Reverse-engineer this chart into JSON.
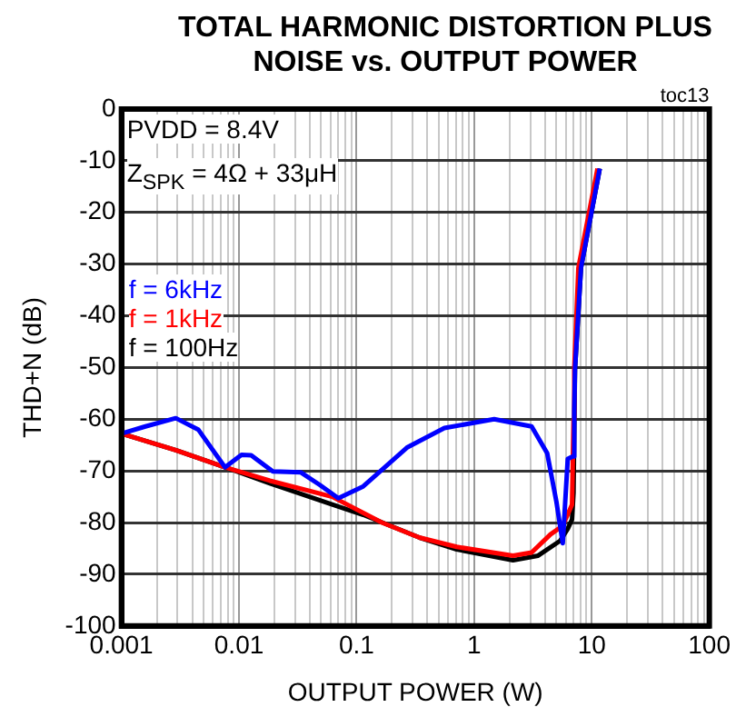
{
  "chart_data": {
    "type": "line",
    "title": "TOTAL HARMONIC DISTORTION PLUS NOISE vs. OUTPUT POWER",
    "xlabel": "OUTPUT POWER (W)",
    "ylabel": "THD+N (dB)",
    "log": "x",
    "xlim": [
      0.001,
      100
    ],
    "ylim": [
      -100,
      0
    ],
    "xticks": [
      0.001,
      {
        "value": 0.002,
        "label": null
      },
      {
        "value": 0.003,
        "label": null
      },
      {
        "value": 0.004,
        "label": null
      },
      {
        "value": 0.005,
        "label": null
      },
      {
        "value": 0.006,
        "label": null
      },
      {
        "value": 0.007,
        "label": null
      },
      {
        "value": 0.008,
        "label": null
      },
      {
        "value": 0.009,
        "label": null
      },
      0.01,
      {
        "value": 0.02,
        "label": null
      },
      {
        "value": 0.03,
        "label": null
      },
      {
        "value": 0.04,
        "label": null
      },
      {
        "value": 0.05,
        "label": null
      },
      {
        "value": 0.06,
        "label": null
      },
      {
        "value": 0.07,
        "label": null
      },
      {
        "value": 0.08,
        "label": null
      },
      {
        "value": 0.09,
        "label": null
      },
      0.1,
      {
        "value": 0.2,
        "label": null
      },
      {
        "value": 0.3,
        "label": null
      },
      {
        "value": 0.4,
        "label": null
      },
      {
        "value": 0.5,
        "label": null
      },
      {
        "value": 0.6,
        "label": null
      },
      {
        "value": 0.7,
        "label": null
      },
      {
        "value": 0.8,
        "label": null
      },
      {
        "value": 0.9,
        "label": null
      },
      1,
      {
        "value": 2,
        "label": null
      },
      {
        "value": 3,
        "label": null
      },
      {
        "value": 4,
        "label": null
      },
      {
        "value": 5,
        "label": null
      },
      {
        "value": 6,
        "label": null
      },
      {
        "value": 7,
        "label": null
      },
      {
        "value": 8,
        "label": null
      },
      {
        "value": 9,
        "label": null
      },
      10,
      {
        "value": 20,
        "label": null
      },
      {
        "value": 30,
        "label": null
      },
      {
        "value": 40,
        "label": null
      },
      {
        "value": 50,
        "label": null
      },
      {
        "value": 60,
        "label": null
      },
      {
        "value": 70,
        "label": null
      },
      {
        "value": 80,
        "label": null
      },
      {
        "value": 90,
        "label": null
      },
      100
    ],
    "yticks": [
      0,
      -10,
      -20,
      -30,
      -40,
      -50,
      -60,
      -70,
      -80,
      -90,
      -100
    ],
    "grid": true,
    "legend": "left",
    "annotations": [
      "PVDD = 8.4V",
      "Z$_{SPK}$ = 4Ω + 33μH",
      "toc13"
    ],
    "series": [
      {
        "name": "f = 6kHz",
        "color": "#0000ff",
        "x": [
          0.001,
          0.0016,
          0.0029,
          0.0045,
          0.0076,
          0.0105,
          0.0127,
          0.0194,
          0.0336,
          0.0485,
          0.07,
          0.114,
          0.268,
          0.558,
          1.48,
          3.08,
          4.18,
          5.0,
          5.67,
          6.25,
          6.9,
          7.1,
          7.2,
          8.1,
          11.7
        ],
        "values": [
          -62.8,
          -61.4,
          -59.8,
          -62,
          -69.3,
          -66.9,
          -67,
          -70.1,
          -70.3,
          -72.7,
          -75.3,
          -73,
          -65.5,
          -61.7,
          -60,
          -61.4,
          -66.6,
          -75.9,
          -84,
          -67.7,
          -67.2,
          -58.5,
          -50.4,
          -30.7,
          -11.5
        ]
      },
      {
        "name": "f = 1kHz",
        "color": "#ff0000",
        "x": [
          0.001,
          0.0029,
          0.0076,
          0.0183,
          0.062,
          0.164,
          0.342,
          0.71,
          2.14,
          3.08,
          4.45,
          5.67,
          6.8,
          7.0,
          7.1,
          7.7,
          11.2
        ],
        "values": [
          -62.8,
          -66,
          -69.3,
          -71.9,
          -75,
          -80,
          -82.9,
          -84.7,
          -86.4,
          -85.8,
          -82.3,
          -80.6,
          -76.5,
          -60,
          -50.4,
          -30.7,
          -11.5
        ]
      },
      {
        "name": "f = 100Hz",
        "color": "#000000",
        "x": [
          0.001,
          0.0029,
          0.0076,
          0.0183,
          0.062,
          0.114,
          0.342,
          0.71,
          2.14,
          3.5,
          5.4,
          6.25,
          6.8,
          7.0,
          7.2,
          8.1,
          11.7
        ],
        "values": [
          -62.8,
          -66,
          -69.3,
          -72.4,
          -76.5,
          -78.5,
          -82.9,
          -85.2,
          -87.3,
          -86.4,
          -83.5,
          -81.2,
          -79.4,
          -74.2,
          -50.4,
          -30.7,
          -11.5
        ]
      }
    ]
  }
}
